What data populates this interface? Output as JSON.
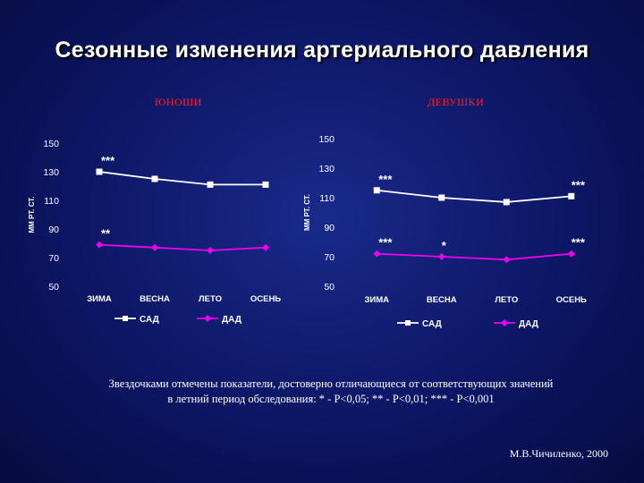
{
  "title": "Сезонные изменения артериального давления",
  "footnote_line1": "Звездочками отмечены показатели, достоверно отличающиеся от соответствующих значений",
  "footnote_line2": "в летний период обследования: * - P<0,05; ** - P<0,01; *** - P<0,001",
  "author": "М.В.Чичиленко, 2000",
  "colors": {
    "sad": "#ffffff",
    "dad": "#ee00ee",
    "subtitle": "#ff2020"
  },
  "chart_data": [
    {
      "type": "line",
      "subtitle": "ЮНОШИ",
      "categories": [
        "ЗИМА",
        "ВЕСНА",
        "ЛЕТО",
        "ОСЕНЬ"
      ],
      "ylabel": "ММ РТ. СТ.",
      "ylim": [
        50,
        150
      ],
      "yticks": [
        150,
        130,
        110,
        90,
        70,
        50
      ],
      "legend": [
        "САД",
        "ДАД"
      ],
      "series": [
        {
          "name": "САД",
          "values": [
            130,
            125,
            121,
            121
          ],
          "color": "#ffffff",
          "marker": "square"
        },
        {
          "name": "ДАД",
          "values": [
            79,
            77,
            75,
            77
          ],
          "color": "#ee00ee",
          "marker": "diamond"
        }
      ],
      "annotations": [
        {
          "text": "***",
          "series": 0,
          "index": 0
        },
        {
          "text": "**",
          "series": 1,
          "index": 0
        }
      ]
    },
    {
      "type": "line",
      "subtitle": "ДЕВУШКИ",
      "categories": [
        "ЗИМА",
        "ВЕСНА",
        "ЛЕТО",
        "ОСЕНЬ"
      ],
      "ylabel": "ММ РТ. СТ.",
      "ylim": [
        50,
        150
      ],
      "yticks": [
        150,
        130,
        110,
        90,
        70,
        50
      ],
      "legend": [
        "САД",
        "ДАД"
      ],
      "series": [
        {
          "name": "САД",
          "values": [
            115,
            110,
            107,
            111
          ],
          "color": "#ffffff",
          "marker": "square"
        },
        {
          "name": "ДАД",
          "values": [
            72,
            70,
            68,
            72
          ],
          "color": "#ee00ee",
          "marker": "diamond"
        }
      ],
      "annotations": [
        {
          "text": "***",
          "series": 0,
          "index": 0
        },
        {
          "text": "***",
          "series": 0,
          "index": 3
        },
        {
          "text": "***",
          "series": 1,
          "index": 0
        },
        {
          "text": "*",
          "series": 1,
          "index": 1
        },
        {
          "text": "***",
          "series": 1,
          "index": 3
        }
      ]
    }
  ]
}
